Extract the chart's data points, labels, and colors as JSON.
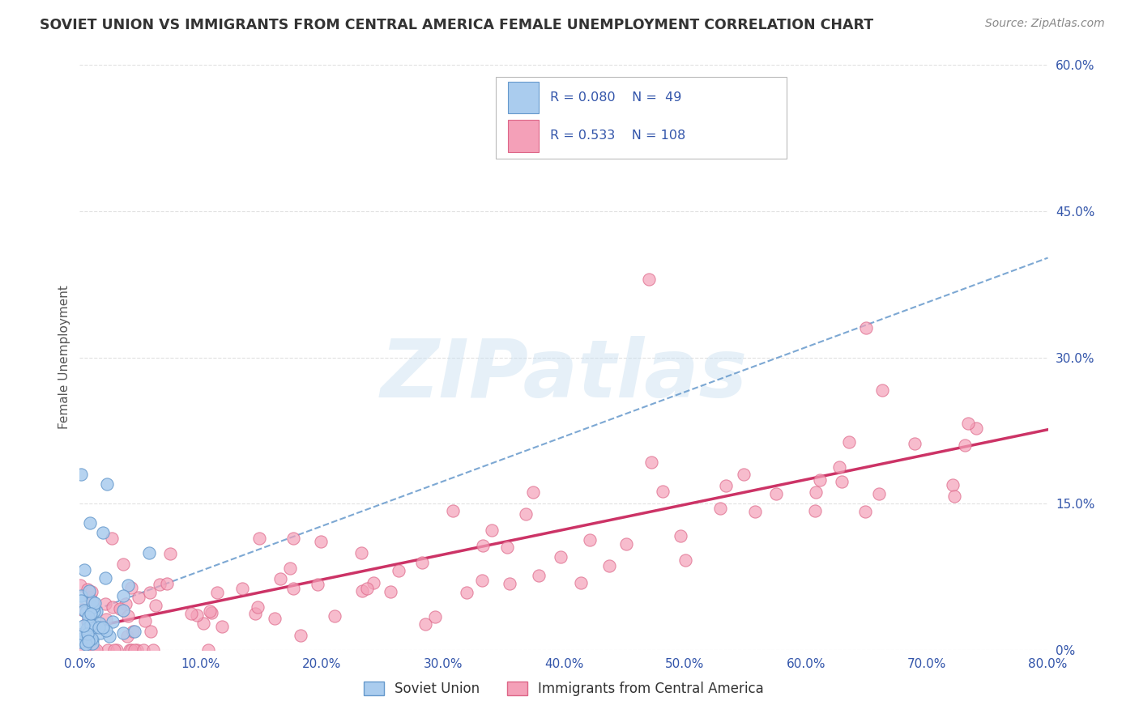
{
  "title": "SOVIET UNION VS IMMIGRANTS FROM CENTRAL AMERICA FEMALE UNEMPLOYMENT CORRELATION CHART",
  "source": "Source: ZipAtlas.com",
  "ylabel": "Female Unemployment",
  "xlabel_ticks": [
    "0.0%",
    "10.0%",
    "20.0%",
    "30.0%",
    "40.0%",
    "50.0%",
    "60.0%",
    "70.0%",
    "80.0%"
  ],
  "xlabel_vals": [
    0,
    10,
    20,
    30,
    40,
    50,
    60,
    70,
    80
  ],
  "ylabel_ticks": [
    "0%",
    "15.0%",
    "30.0%",
    "45.0%",
    "60.0%"
  ],
  "ylabel_vals": [
    0,
    15,
    30,
    45,
    60
  ],
  "xlim": [
    0,
    80
  ],
  "ylim": [
    0,
    60
  ],
  "legend1_label": "Soviet Union",
  "legend2_label": "Immigrants from Central America",
  "R1": 0.08,
  "N1": 49,
  "R2": 0.533,
  "N2": 108,
  "watermark": "ZIPatlas",
  "title_color": "#333333",
  "source_color": "#888888",
  "series1_color": "#aaccee",
  "series1_edge": "#6699cc",
  "series2_color": "#f4a0b8",
  "series2_edge": "#dd6688",
  "trend1_color": "#6699cc",
  "trend2_color": "#cc3366",
  "axis_tick_color": "#3355aa",
  "legend_R_color": "#3355aa",
  "grid_color": "#dddddd",
  "watermark_color": "#c8dff0"
}
